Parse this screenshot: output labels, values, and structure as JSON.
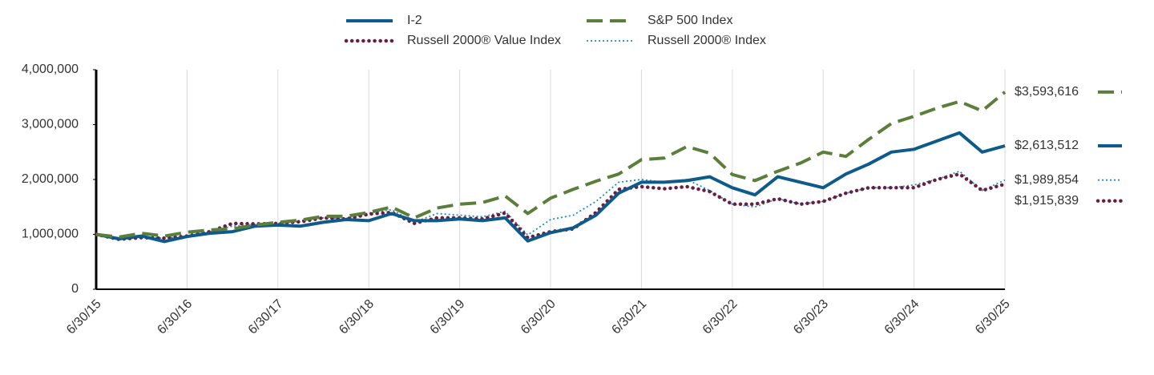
{
  "chart_data": {
    "type": "line",
    "categories": [
      "6/30/15",
      null,
      null,
      null,
      "6/30/16",
      null,
      null,
      null,
      "6/30/17",
      null,
      null,
      null,
      "6/30/18",
      null,
      null,
      null,
      "6/30/19",
      null,
      null,
      null,
      "6/30/20",
      null,
      null,
      null,
      "6/30/21",
      null,
      null,
      null,
      "6/30/22",
      null,
      null,
      null,
      "6/30/23",
      null,
      null,
      null,
      "6/30/24",
      null,
      null,
      null,
      "6/30/25"
    ],
    "ylim": [
      0,
      4000000
    ],
    "yticks": [
      0,
      {
        "value": 1000000,
        "label": "1,000,000"
      },
      {
        "value": 2000000,
        "label": "2,000,000"
      },
      {
        "value": 3000000,
        "label": "3,000,000"
      },
      {
        "value": 4000000,
        "label": "4,000,000"
      }
    ],
    "grid": "vertical",
    "series": [
      {
        "name": "I-2",
        "color": "#0e5a8a",
        "style": "solid",
        "end_label": "$2,613,512",
        "values": [
          1000000,
          920000,
          970000,
          870000,
          960000,
          1020000,
          1050000,
          1150000,
          1170000,
          1150000,
          1220000,
          1270000,
          1250000,
          1380000,
          1250000,
          1250000,
          1280000,
          1250000,
          1300000,
          880000,
          1030000,
          1120000,
          1350000,
          1750000,
          1950000,
          1950000,
          1980000,
          2050000,
          1850000,
          1720000,
          2050000,
          1950000,
          1850000,
          2100000,
          2280000,
          2500000,
          2550000,
          2700000,
          2850000,
          2500000,
          2613512
        ]
      },
      {
        "name": "S&P 500 Index",
        "color": "#5b7f3a",
        "style": "dashed",
        "end_label": "$3,593,616",
        "values": [
          1000000,
          950000,
          1020000,
          970000,
          1040000,
          1080000,
          1100000,
          1170000,
          1220000,
          1260000,
          1330000,
          1330000,
          1400000,
          1500000,
          1300000,
          1480000,
          1550000,
          1580000,
          1700000,
          1380000,
          1660000,
          1820000,
          1970000,
          2100000,
          2360000,
          2390000,
          2600000,
          2480000,
          2090000,
          1980000,
          2150000,
          2300000,
          2500000,
          2420000,
          2730000,
          3020000,
          3150000,
          3300000,
          3420000,
          3250000,
          3593616
        ]
      },
      {
        "name": "Russell 2000® Value Index",
        "color": "#6b1f3f",
        "style": "dotted",
        "end_label": "$1,915,839",
        "values": [
          1000000,
          910000,
          940000,
          930000,
          970000,
          1050000,
          1200000,
          1190000,
          1200000,
          1230000,
          1300000,
          1280000,
          1370000,
          1400000,
          1200000,
          1300000,
          1300000,
          1280000,
          1390000,
          940000,
          1050000,
          1100000,
          1400000,
          1820000,
          1870000,
          1830000,
          1870000,
          1780000,
          1550000,
          1550000,
          1650000,
          1550000,
          1600000,
          1750000,
          1850000,
          1850000,
          1850000,
          2000000,
          2100000,
          1800000,
          1915839
        ]
      },
      {
        "name": "Russell 2000® Index",
        "color": "#1a8cc8",
        "style": "dotted-thin",
        "end_label": "$1,989,854",
        "values": [
          1000000,
          900000,
          950000,
          930000,
          960000,
          1050000,
          1150000,
          1180000,
          1200000,
          1250000,
          1300000,
          1290000,
          1390000,
          1450000,
          1220000,
          1380000,
          1350000,
          1320000,
          1420000,
          990000,
          1270000,
          1350000,
          1600000,
          1950000,
          2000000,
          1950000,
          2000000,
          1800000,
          1550000,
          1500000,
          1650000,
          1550000,
          1600000,
          1750000,
          1850000,
          1850000,
          1900000,
          2000000,
          2150000,
          1800000,
          1989854
        ]
      }
    ]
  }
}
